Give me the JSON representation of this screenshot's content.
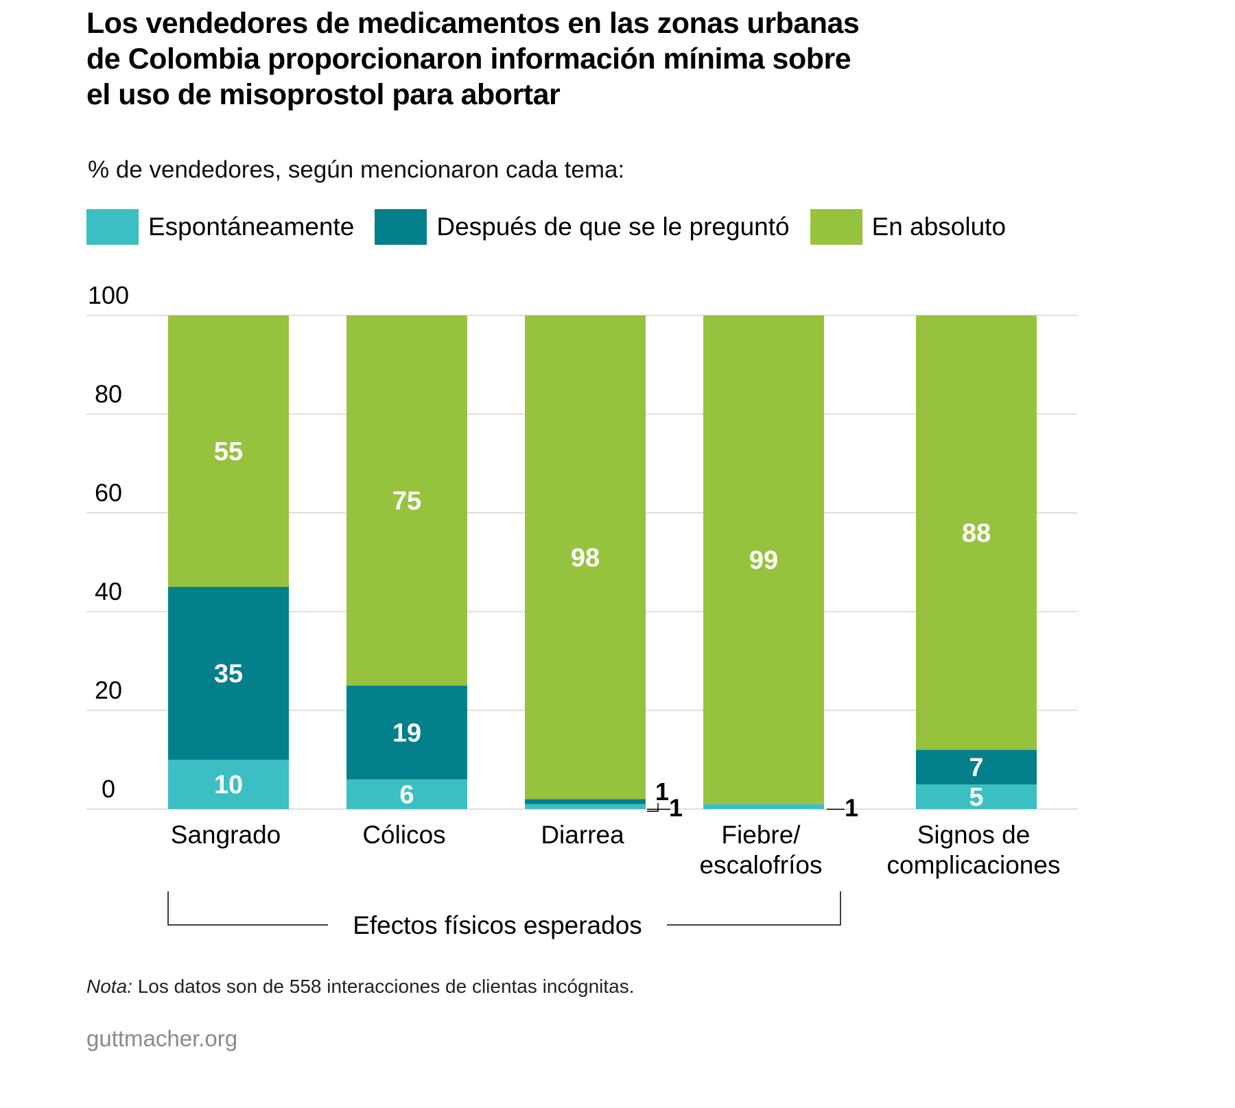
{
  "title": "Los vendedores de medicamentos en las zonas urbanas de Colombia proporcionaron información mínima sobre el uso de misoprostol para abortar",
  "title_lines": [
    "Los vendedores de medicamentos en las zonas urbanas",
    "de Colombia proporcionaron información mínima sobre",
    "el uso de misoprostol para abortar"
  ],
  "subtitle": "% de vendedores, según mencionaron cada tema:",
  "colors": {
    "spontaneous": "#3BBFC3",
    "after_asked": "#03808C",
    "not_at_all": "#97C23E",
    "grid": "#e4dedb",
    "label_dark": "#000000",
    "label_light": "#ffffff"
  },
  "chart_data": {
    "type": "bar",
    "stacked": true,
    "title": "Los vendedores de medicamentos en las zonas urbanas de Colombia proporcionaron información mínima sobre el uso de misoprostol para abortar",
    "ylabel": "% de vendedores, según mencionaron cada tema:",
    "xlabel": "",
    "ylim": [
      0,
      100
    ],
    "yticks": [
      0,
      20,
      40,
      60,
      80,
      100
    ],
    "grid": true,
    "legend_position": "top-left",
    "categories": [
      "Sangrado",
      "Cólicos",
      "Diarrea",
      "Fiebre/ escalofríos",
      "Signos de complicaciones"
    ],
    "category_lines": [
      [
        "Sangrado"
      ],
      [
        "Cólicos"
      ],
      [
        "Diarrea"
      ],
      [
        "Fiebre/",
        "escalofríos"
      ],
      [
        "Signos de",
        "complicaciones"
      ]
    ],
    "series": [
      {
        "name": "Espontáneamente",
        "key": "spontaneous",
        "values": [
          10,
          6,
          1,
          1,
          5
        ]
      },
      {
        "name": "Después de que se le preguntó",
        "key": "after_asked",
        "values": [
          35,
          19,
          1,
          0,
          7
        ]
      },
      {
        "name": "En absoluto",
        "key": "not_at_all",
        "values": [
          55,
          75,
          98,
          99,
          88
        ]
      }
    ],
    "data_labels": [
      {
        "category": 0,
        "series": 0,
        "text": "10"
      },
      {
        "category": 0,
        "series": 1,
        "text": "35"
      },
      {
        "category": 0,
        "series": 2,
        "text": "55"
      },
      {
        "category": 1,
        "series": 0,
        "text": "6"
      },
      {
        "category": 1,
        "series": 1,
        "text": "19"
      },
      {
        "category": 1,
        "series": 2,
        "text": "75"
      },
      {
        "category": 2,
        "series": 2,
        "text": "98"
      },
      {
        "category": 3,
        "series": 2,
        "text": "99"
      },
      {
        "category": 4,
        "series": 0,
        "text": "5"
      },
      {
        "category": 4,
        "series": 1,
        "text": "7"
      },
      {
        "category": 4,
        "series": 2,
        "text": "88"
      }
    ],
    "callouts": [
      {
        "category": 2,
        "series": 1,
        "text": "1"
      },
      {
        "category": 2,
        "series": 0,
        "text": "1"
      },
      {
        "category": 3,
        "series": 0,
        "text": "1"
      }
    ],
    "group_bracket": {
      "label": "Efectos físicos esperados",
      "from_category": 0,
      "to_category": 3
    }
  },
  "legend": [
    {
      "label": "Espontáneamente",
      "key": "spontaneous"
    },
    {
      "label": "Después de que se le preguntó",
      "key": "after_asked"
    },
    {
      "label": "En absoluto",
      "key": "not_at_all"
    }
  ],
  "note_prefix": "Nota:",
  "note_text": " Los datos son de 558 interacciones de clientas incógnitas.",
  "source": "guttmacher.org"
}
